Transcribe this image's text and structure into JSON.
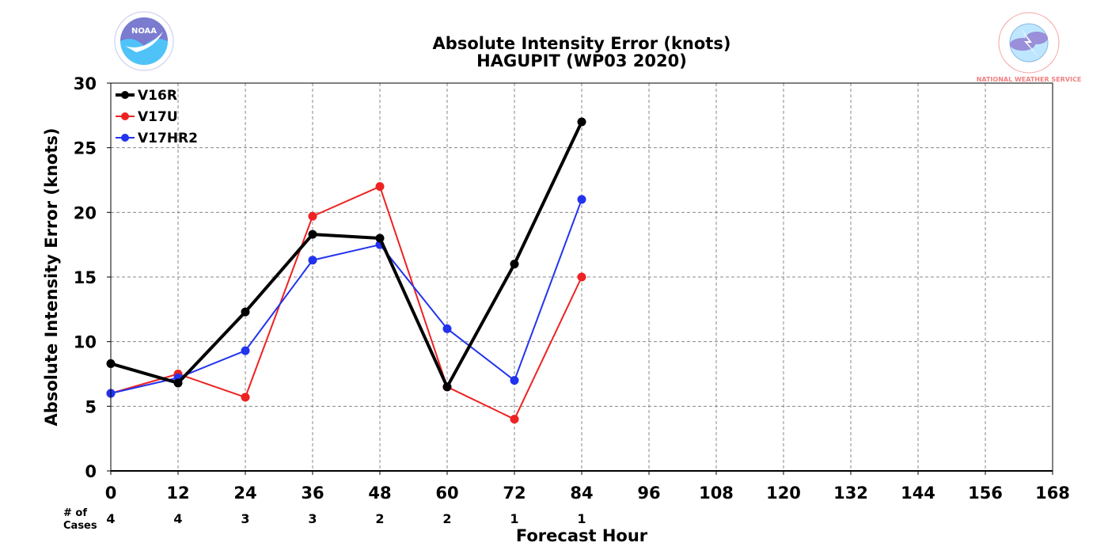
{
  "logos": {
    "left": {
      "name": "noaa-logo",
      "text": "NOAA",
      "colors": {
        "sky": "#4fc3f7",
        "purple": "#7b7bd0"
      }
    },
    "right": {
      "name": "nws-logo",
      "text": "NATIONAL WEATHER SERVICE",
      "colors": {
        "ring": "#f08080",
        "cloud": "#9a8fd8"
      }
    }
  },
  "chart_data": {
    "type": "line",
    "title": "Absolute Intensity Error (knots)",
    "subtitle": "HAGUPIT (WP03 2020)",
    "xlabel": "Forecast Hour",
    "ylabel": "Absolute Intensity Error (knots)",
    "xlim": [
      0,
      168
    ],
    "ylim": [
      0,
      30
    ],
    "xticks": [
      "0",
      "12",
      "24",
      "36",
      "48",
      "60",
      "72",
      "84",
      "96",
      "108",
      "120",
      "132",
      "144",
      "156",
      "168"
    ],
    "yticks": [
      "0",
      "5",
      "10",
      "15",
      "20",
      "25",
      "30"
    ],
    "grid": true,
    "legend_position": "top-left",
    "cases_label": "# of\nCases",
    "cases": [
      {
        "x": 0,
        "n": "4"
      },
      {
        "x": 12,
        "n": "4"
      },
      {
        "x": 24,
        "n": "3"
      },
      {
        "x": 36,
        "n": "3"
      },
      {
        "x": 48,
        "n": "2"
      },
      {
        "x": 60,
        "n": "2"
      },
      {
        "x": 72,
        "n": "1"
      },
      {
        "x": 84,
        "n": "1"
      }
    ],
    "x": [
      0,
      12,
      24,
      36,
      48,
      60,
      72,
      84
    ],
    "series": [
      {
        "name": "V16R",
        "color": "#000000",
        "weight": "heavy",
        "values": [
          8.3,
          6.8,
          12.3,
          18.3,
          18.0,
          6.5,
          16.0,
          27.0
        ]
      },
      {
        "name": "V17U",
        "color": "#ee2222",
        "weight": "light",
        "values": [
          6.0,
          7.5,
          5.7,
          19.7,
          22.0,
          6.5,
          4.0,
          15.0
        ]
      },
      {
        "name": "V17HR2",
        "color": "#2233ee",
        "weight": "light",
        "values": [
          6.0,
          7.2,
          9.3,
          16.3,
          17.5,
          11.0,
          7.0,
          21.0
        ]
      }
    ]
  }
}
